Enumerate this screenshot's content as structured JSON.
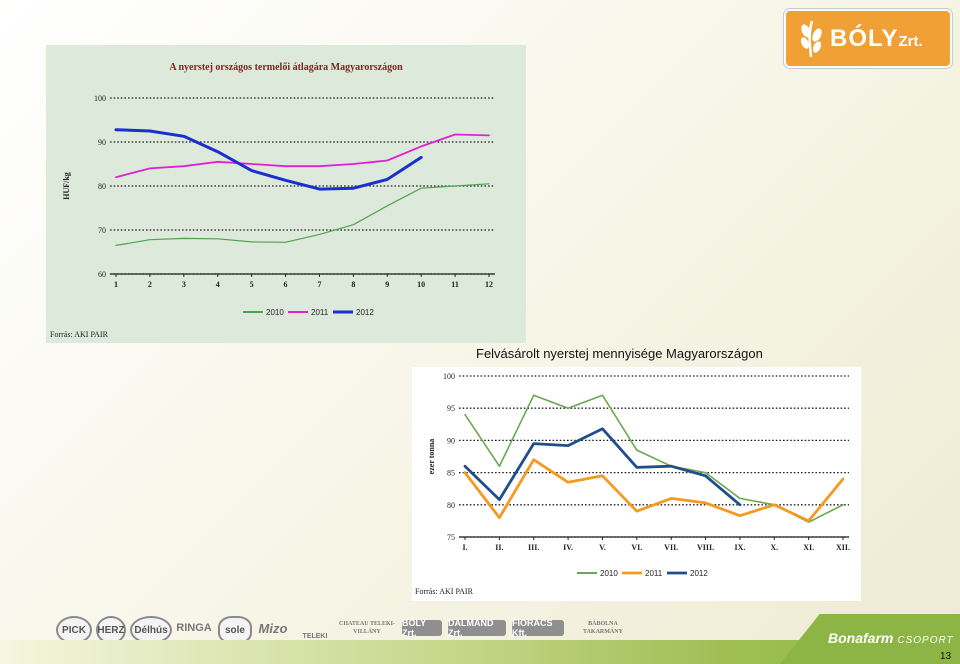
{
  "logo": {
    "text": "BÓLY",
    "suffix": "Zrt."
  },
  "caption": "Felvásárolt nyerstej mennyisége Magyarországon",
  "chart_data": [
    {
      "type": "line",
      "title": "A nyerstej országos termelői átlagára Magyarországon",
      "ylabel": "HUF/kg",
      "x": [
        "1",
        "2",
        "3",
        "4",
        "5",
        "6",
        "7",
        "8",
        "9",
        "10",
        "11",
        "12"
      ],
      "ylim": [
        60,
        100
      ],
      "yticks": [
        "60",
        "70",
        "80",
        "90",
        "100"
      ],
      "grid": "dotted horizontal",
      "legend_position": "bottom",
      "source": "Forrás: AKI PAIR",
      "series": [
        {
          "name": "2010",
          "color": "#4fa34f",
          "width": 1.2,
          "values": [
            66.5,
            67.8,
            68.1,
            68.0,
            67.3,
            67.2,
            69.0,
            71.2,
            75.5,
            79.5,
            80.0,
            80.5
          ]
        },
        {
          "name": "2011",
          "color": "#e020d6",
          "width": 1.8,
          "values": [
            82.0,
            84.0,
            84.5,
            85.5,
            85.0,
            84.5,
            84.5,
            85.0,
            85.8,
            89.0,
            91.7,
            91.5
          ]
        },
        {
          "name": "2012",
          "color": "#1a2fcf",
          "width": 3.0,
          "values": [
            92.8,
            92.5,
            91.3,
            87.8,
            83.5,
            81.3,
            79.3,
            79.5,
            81.5,
            86.5,
            null,
            null
          ]
        }
      ]
    },
    {
      "type": "line",
      "ylabel": "ezer tonna",
      "x": [
        "I.",
        "II.",
        "III.",
        "IV.",
        "V.",
        "VI.",
        "VII.",
        "VIII.",
        "IX.",
        "X.",
        "XI.",
        "XII."
      ],
      "ylim": [
        75,
        100
      ],
      "yticks": [
        "75",
        "80",
        "85",
        "90",
        "95",
        "100"
      ],
      "grid": "dotted horizontal",
      "legend_position": "bottom",
      "source": "Forrás: AKI PAIR",
      "series": [
        {
          "name": "2010",
          "color": "#6aa84f",
          "width": 1.6,
          "values": [
            94.0,
            86.0,
            97.0,
            95.0,
            97.0,
            88.5,
            86.0,
            85.0,
            81.0,
            80.0,
            77.3,
            80.0
          ]
        },
        {
          "name": "2011",
          "color": "#f39a1f",
          "width": 2.8,
          "values": [
            85.0,
            78.0,
            87.0,
            83.5,
            84.5,
            79.0,
            81.0,
            80.3,
            78.3,
            80.0,
            77.5,
            84.0
          ]
        },
        {
          "name": "2012",
          "color": "#1f4e8c",
          "width": 2.8,
          "values": [
            86.0,
            80.8,
            89.5,
            89.2,
            91.8,
            85.8,
            86.0,
            84.5,
            80.0,
            null,
            null,
            null
          ]
        }
      ]
    }
  ],
  "footer": {
    "brands": [
      "PICK",
      "HERZ",
      "Délhús",
      "RINGA",
      "sole",
      "Mizo",
      "TELEKI",
      "CHATEAU TELEKI-VILLÁNY",
      "BÓLY Zrt.",
      "DALMAND Zrt.",
      "FIORÁCS Kft.",
      "BÁBOLNA TAKARMÁNY"
    ],
    "group_name": "Bonafarm",
    "group_suffix": "CSOPORT",
    "page_number": "13"
  }
}
